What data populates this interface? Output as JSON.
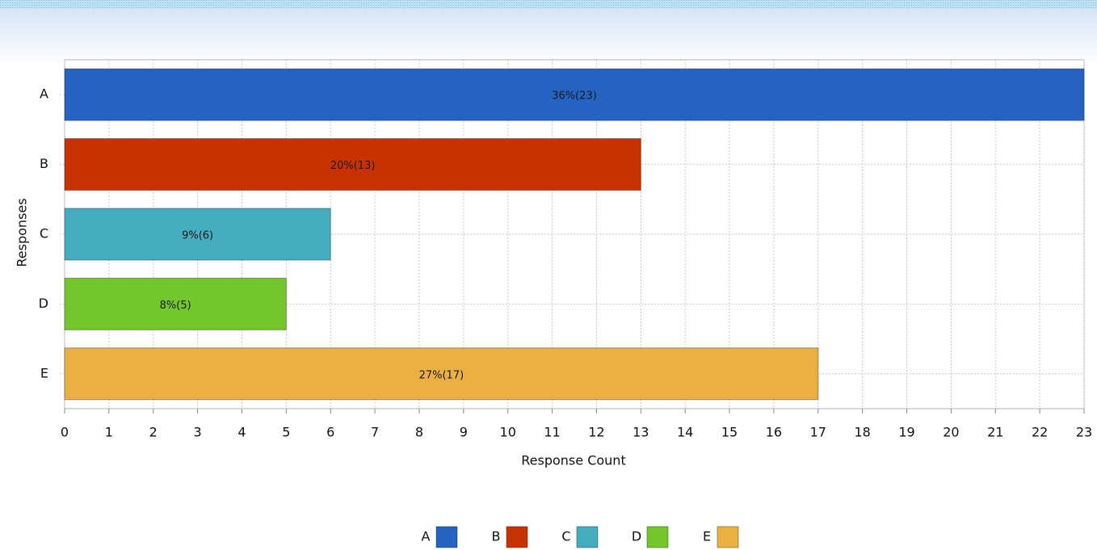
{
  "chart_data": {
    "type": "barh",
    "categories": [
      "A",
      "B",
      "C",
      "D",
      "E"
    ],
    "values": [
      23,
      13,
      6,
      5,
      17
    ],
    "value_labels": [
      "36%(23)",
      "20%(13)",
      "9%(6)",
      "8%(5)",
      "27%(17)"
    ],
    "colors": [
      "#2563c2",
      "#c83200",
      "#45adc0",
      "#74c62d",
      "#ebb044"
    ],
    "xlabel": "Response Count",
    "ylabel": "Responses",
    "xlim": [
      0,
      23
    ],
    "xticks": [
      0,
      1,
      2,
      3,
      4,
      5,
      6,
      7,
      8,
      9,
      10,
      11,
      12,
      13,
      14,
      15,
      16,
      17,
      18,
      19,
      20,
      21,
      22,
      23
    ],
    "grid": true,
    "legend": "bottom"
  }
}
